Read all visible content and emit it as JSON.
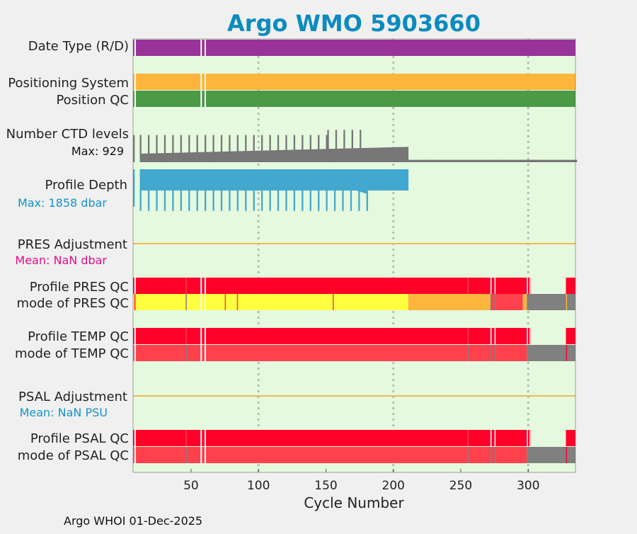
{
  "chart_data": {
    "type": "bar",
    "title": "Argo WMO 5903660",
    "xlabel": "Cycle Number",
    "xlim": [
      7,
      335
    ],
    "xticks": [
      50,
      100,
      150,
      200,
      250,
      300
    ],
    "grid_x": [
      100,
      200,
      300
    ],
    "footer": "Argo WHOI 01-Dec-2025",
    "colors": {
      "title": "#0c8bbf",
      "background": "#e5f9df",
      "date_type": "#993399",
      "positioning": "#ffb43c",
      "position_qc": "#4a9a46",
      "ctd": "#777777",
      "depth": "#42a8d0",
      "adjustment_line": "#f0b94f",
      "qc_red": "#ff0029",
      "qc_light_red": "#ff404d",
      "qc_yellow": "#ffff40",
      "qc_orange": "#ffb43c",
      "qc_gray": "#808080",
      "mean_pres": "#e0108a",
      "mean_psal": "#1693c8"
    },
    "gap_cycles": [
      8,
      57,
      60
    ],
    "rows": {
      "date_type": {
        "label": "Date Type (R/D)"
      },
      "positioning": {
        "label": "Positioning System"
      },
      "position_qc": {
        "label": "Position QC"
      },
      "ctd_levels": {
        "label": "Number CTD levels",
        "max_label": "Max: 929",
        "max": 929,
        "spike_interval": 6,
        "segments": [
          {
            "from": 12,
            "to": 210,
            "start": 0.25,
            "end": 0.45
          },
          {
            "from": 211,
            "to": 335,
            "start": 0.07,
            "end": 0.07
          }
        ],
        "spikes": [
          {
            "from": 12,
            "to": 150,
            "value": 0.8
          },
          {
            "from": 151,
            "to": 180,
            "value": 0.95
          }
        ]
      },
      "profile_depth": {
        "label": "Profile Depth",
        "max_label": "Max: 1858 dbar",
        "max": 1858,
        "data_from": 12,
        "data_to": 210,
        "spike_interval": 6,
        "base": 0.5,
        "taper_from": 172,
        "taper_to": 180,
        "taper_to_value": 0.58,
        "spikes": [
          {
            "from": 12,
            "to": 180,
            "value": 0.98
          }
        ]
      },
      "pres_adjustment": {
        "label": "PRES Adjustment",
        "mean_label": "Mean:  NaN dbar"
      },
      "profile_pres_qc": {
        "label": "Profile PRES QC",
        "segments": [
          {
            "from": 7,
            "to": 335,
            "color": "qc_red"
          }
        ],
        "marks": [
          {
            "at": 46,
            "color": "qc_light_red"
          },
          {
            "at": 255,
            "color": "qc_light_red"
          },
          {
            "at": 272,
            "color": "white"
          },
          {
            "at": 275,
            "color": "white"
          },
          {
            "at": 299,
            "color": "white"
          },
          {
            "at": 301,
            "color": "white"
          }
        ],
        "clear_from": 302,
        "clear_to": 327,
        "tail_marks": [
          {
            "at": 328,
            "color": "qc_red"
          }
        ]
      },
      "mode_pres_qc": {
        "label": "mode of PRES QC",
        "segments": [
          {
            "from": 7,
            "to": 211,
            "color": "qc_yellow"
          },
          {
            "from": 211,
            "to": 257,
            "color": "qc_orange"
          },
          {
            "from": 257,
            "to": 272,
            "color": "qc_orange"
          },
          {
            "from": 272,
            "to": 277,
            "color": "qc_light_red"
          },
          {
            "from": 277,
            "to": 296,
            "color": "qc_light_red"
          },
          {
            "from": 296,
            "to": 299,
            "color": "qc_orange"
          },
          {
            "from": 299,
            "to": 335,
            "color": "qc_gray"
          }
        ],
        "marks": [
          {
            "at": 8,
            "color": "qc_red"
          },
          {
            "at": 46,
            "color": "qc_gray"
          },
          {
            "at": 75,
            "color": "qc_light_red"
          },
          {
            "at": 84,
            "color": "qc_light_red"
          },
          {
            "at": 155,
            "color": "qc_light_red"
          },
          {
            "at": 272,
            "color": "qc_gray"
          },
          {
            "at": 275,
            "color": "qc_gray"
          },
          {
            "at": 328,
            "color": "qc_orange"
          }
        ]
      },
      "profile_temp_qc": {
        "label": "Profile TEMP QC",
        "segments": [
          {
            "from": 7,
            "to": 335,
            "color": "qc_red"
          }
        ],
        "marks": [
          {
            "at": 46,
            "color": "qc_light_red"
          },
          {
            "at": 255,
            "color": "qc_light_red"
          },
          {
            "at": 272,
            "color": "white"
          },
          {
            "at": 275,
            "color": "white"
          },
          {
            "at": 299,
            "color": "white"
          },
          {
            "at": 301,
            "color": "white"
          }
        ],
        "clear_from": 302,
        "clear_to": 327,
        "tail_marks": [
          {
            "at": 328,
            "color": "qc_red"
          }
        ]
      },
      "mode_temp_qc": {
        "label": "mode of TEMP QC",
        "segments": [
          {
            "from": 7,
            "to": 299,
            "color": "qc_light_red"
          },
          {
            "from": 299,
            "to": 335,
            "color": "qc_gray"
          }
        ],
        "marks": [
          {
            "at": 46,
            "color": "qc_gray"
          },
          {
            "at": 255,
            "color": "qc_gray"
          },
          {
            "at": 272,
            "color": "qc_gray"
          },
          {
            "at": 275,
            "color": "qc_gray"
          },
          {
            "at": 328,
            "color": "qc_red"
          }
        ]
      },
      "psal_adjustment": {
        "label": "PSAL Adjustment",
        "mean_label": "Mean:  NaN PSU"
      },
      "profile_psal_qc": {
        "label": "Profile PSAL QC",
        "segments": [
          {
            "from": 7,
            "to": 335,
            "color": "qc_red"
          }
        ],
        "marks": [
          {
            "at": 46,
            "color": "qc_light_red"
          },
          {
            "at": 255,
            "color": "qc_light_red"
          },
          {
            "at": 272,
            "color": "white"
          },
          {
            "at": 275,
            "color": "white"
          },
          {
            "at": 299,
            "color": "white"
          },
          {
            "at": 301,
            "color": "white"
          }
        ],
        "clear_from": 302,
        "clear_to": 327,
        "tail_marks": [
          {
            "at": 328,
            "color": "qc_red"
          }
        ]
      },
      "mode_psal_qc": {
        "label": "mode of PSAL QC",
        "segments": [
          {
            "from": 7,
            "to": 299,
            "color": "qc_light_red"
          },
          {
            "from": 299,
            "to": 335,
            "color": "qc_gray"
          }
        ],
        "marks": [
          {
            "at": 46,
            "color": "qc_gray"
          },
          {
            "at": 255,
            "color": "qc_gray"
          },
          {
            "at": 272,
            "color": "qc_gray"
          },
          {
            "at": 275,
            "color": "qc_gray"
          },
          {
            "at": 328,
            "color": "qc_red"
          }
        ]
      }
    }
  }
}
